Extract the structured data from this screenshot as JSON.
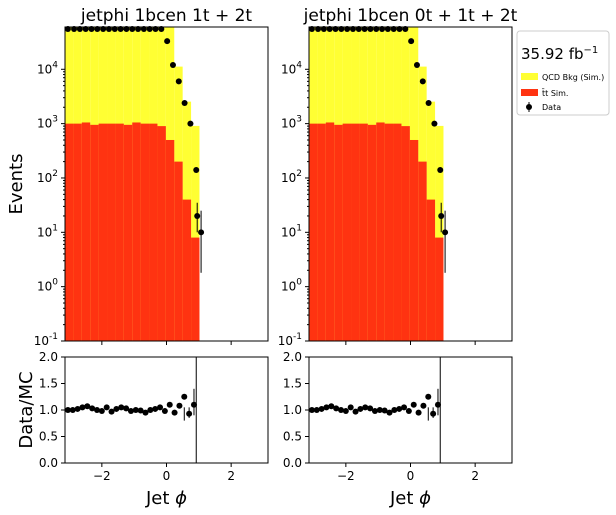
{
  "chart_data": [
    {
      "type": "bar",
      "title": "jetphi  1bcen 1t + 2t",
      "ylabel": "Events",
      "yscale": "log",
      "xlim": [
        -3.14,
        3.14
      ],
      "ylim": [
        0.1,
        60000
      ],
      "ytick_labels": [
        "10^-1",
        "10^0",
        "10^1",
        "10^2",
        "10^3",
        "10^4"
      ],
      "bin_edges": [
        -3.14,
        -2.88,
        -2.62,
        -2.36,
        -2.1,
        -1.84,
        -1.58,
        -1.32,
        -1.06,
        -0.8,
        -0.54,
        -0.28,
        -0.02,
        0.24,
        0.5,
        0.76,
        1.02
      ],
      "series": [
        {
          "name": "QCD Bkg (Sim.)",
          "values": [
            60000,
            60000,
            60000,
            60000,
            60000,
            60000,
            60000,
            60000,
            60000,
            60000,
            60000,
            60000,
            60000,
            11000,
            2500,
            900,
            0
          ]
        },
        {
          "name": "t#bar{t} Sim.",
          "values": [
            1000,
            1000,
            1050,
            950,
            1000,
            1000,
            1000,
            950,
            1050,
            1000,
            1000,
            900,
            500,
            200,
            40,
            8,
            0
          ]
        }
      ],
      "data": {
        "name": "Data",
        "x": [
          -3.05,
          -2.86,
          -2.68,
          -2.5,
          -2.32,
          -2.14,
          -1.96,
          -1.78,
          -1.6,
          -1.42,
          -1.24,
          -1.06,
          -0.88,
          -0.7,
          -0.52,
          -0.34,
          -0.16,
          0.02,
          0.2,
          0.38,
          0.56,
          0.74,
          0.92
        ],
        "y": [
          60000,
          58000,
          60000,
          59000,
          57000,
          60000,
          58000,
          60000,
          59000,
          60000,
          60000,
          58000,
          60000,
          60000,
          60000,
          59000,
          60000,
          33000,
          12000,
          6000,
          2400,
          1000,
          140
        ],
        "extra_points": [
          {
            "x": 0.95,
            "y": 20,
            "err_low": 10,
            "err_high": 35
          },
          {
            "x": 1.07,
            "y": 10,
            "err_low": 1.8,
            "err_high": 25
          }
        ]
      }
    },
    {
      "type": "bar",
      "title": "jetphi  1bcen 0t + 1t + 2t",
      "yscale": "log",
      "xlim": [
        -3.14,
        3.14
      ],
      "ylim": [
        0.1,
        60000
      ],
      "ytick_labels": [
        "10^-1",
        "10^0",
        "10^1",
        "10^2",
        "10^3",
        "10^4"
      ],
      "bin_edges": [
        -3.14,
        -2.88,
        -2.62,
        -2.36,
        -2.1,
        -1.84,
        -1.58,
        -1.32,
        -1.06,
        -0.8,
        -0.54,
        -0.28,
        -0.02,
        0.24,
        0.5,
        0.76,
        1.02
      ],
      "series": [
        {
          "name": "QCD Bkg (Sim.)",
          "values": [
            60000,
            60000,
            60000,
            60000,
            60000,
            60000,
            60000,
            60000,
            60000,
            60000,
            60000,
            60000,
            60000,
            11000,
            2500,
            900,
            0
          ]
        },
        {
          "name": "t#bar{t} Sim.",
          "values": [
            1000,
            1000,
            1050,
            950,
            1000,
            1000,
            1000,
            950,
            1050,
            1000,
            1000,
            900,
            500,
            200,
            40,
            8,
            0
          ]
        }
      ],
      "data": {
        "name": "Data",
        "x": [
          -3.05,
          -2.86,
          -2.68,
          -2.5,
          -2.32,
          -2.14,
          -1.96,
          -1.78,
          -1.6,
          -1.42,
          -1.24,
          -1.06,
          -0.88,
          -0.7,
          -0.52,
          -0.34,
          -0.16,
          0.02,
          0.2,
          0.38,
          0.56,
          0.74,
          0.92
        ],
        "y": [
          60000,
          58000,
          60000,
          59000,
          57000,
          60000,
          58000,
          60000,
          59000,
          60000,
          60000,
          58000,
          60000,
          60000,
          60000,
          59000,
          60000,
          33000,
          12000,
          6000,
          2400,
          1000,
          140
        ],
        "extra_points": [
          {
            "x": 0.95,
            "y": 20,
            "err_low": 10,
            "err_high": 35
          },
          {
            "x": 1.07,
            "y": 10,
            "err_low": 1.8,
            "err_high": 25
          }
        ]
      }
    },
    {
      "type": "scatter",
      "ylabel": "Data/MC",
      "xlabel": "Jet ϕ",
      "xlim": [
        -3.14,
        3.14
      ],
      "ylim": [
        0.0,
        2.0
      ],
      "xtick_labels": [
        "−2",
        "0",
        "2"
      ],
      "ytick_labels": [
        "0.0",
        "0.5",
        "1.0",
        "1.5",
        "2.0"
      ],
      "reference_line_x": 0.92,
      "x": [
        -3.05,
        -2.9,
        -2.75,
        -2.6,
        -2.45,
        -2.3,
        -2.15,
        -2.0,
        -1.85,
        -1.7,
        -1.55,
        -1.4,
        -1.25,
        -1.1,
        -0.95,
        -0.8,
        -0.65,
        -0.5,
        -0.35,
        -0.2,
        -0.05,
        0.1,
        0.25,
        0.4,
        0.55,
        0.7,
        0.85
      ],
      "y": [
        1.0,
        1.0,
        1.02,
        1.05,
        1.07,
        1.03,
        1.0,
        0.98,
        1.05,
        0.97,
        1.02,
        1.05,
        1.03,
        0.98,
        1.0,
        0.99,
        0.95,
        1.0,
        1.02,
        1.05,
        0.98,
        1.1,
        0.95,
        1.08,
        1.25,
        0.93,
        1.1
      ]
    },
    {
      "type": "scatter",
      "xlabel": "Jet ϕ",
      "xlim": [
        -3.14,
        3.14
      ],
      "ylim": [
        0.0,
        2.0
      ],
      "xtick_labels": [
        "−2",
        "0",
        "2"
      ],
      "ytick_labels": [
        "0.0",
        "0.5",
        "1.0",
        "1.5",
        "2.0"
      ],
      "reference_line_x": 0.92,
      "x": [
        -3.05,
        -2.9,
        -2.75,
        -2.6,
        -2.45,
        -2.3,
        -2.15,
        -2.0,
        -1.85,
        -1.7,
        -1.55,
        -1.4,
        -1.25,
        -1.1,
        -0.95,
        -0.8,
        -0.65,
        -0.5,
        -0.35,
        -0.2,
        -0.05,
        0.1,
        0.25,
        0.4,
        0.55,
        0.7,
        0.85
      ],
      "y": [
        1.0,
        1.0,
        1.02,
        1.05,
        1.07,
        1.03,
        1.0,
        0.98,
        1.05,
        0.97,
        1.02,
        1.05,
        1.03,
        0.98,
        1.0,
        0.99,
        0.95,
        1.0,
        1.02,
        1.05,
        0.98,
        1.1,
        0.95,
        1.08,
        1.25,
        0.93,
        1.1
      ]
    }
  ],
  "legend": {
    "lumi": "35.92 fb",
    "lumi_exp": "−1",
    "entries": [
      {
        "label": "QCD Bkg (Sim.)",
        "color": "#ffff33"
      },
      {
        "label": "t̄t Sim.",
        "color": "#ff3311"
      },
      {
        "label": "Data",
        "color": "#000000"
      }
    ]
  },
  "colors": {
    "qcd": "#ffff33",
    "ttbar": "#ff3311",
    "data": "#000000"
  }
}
